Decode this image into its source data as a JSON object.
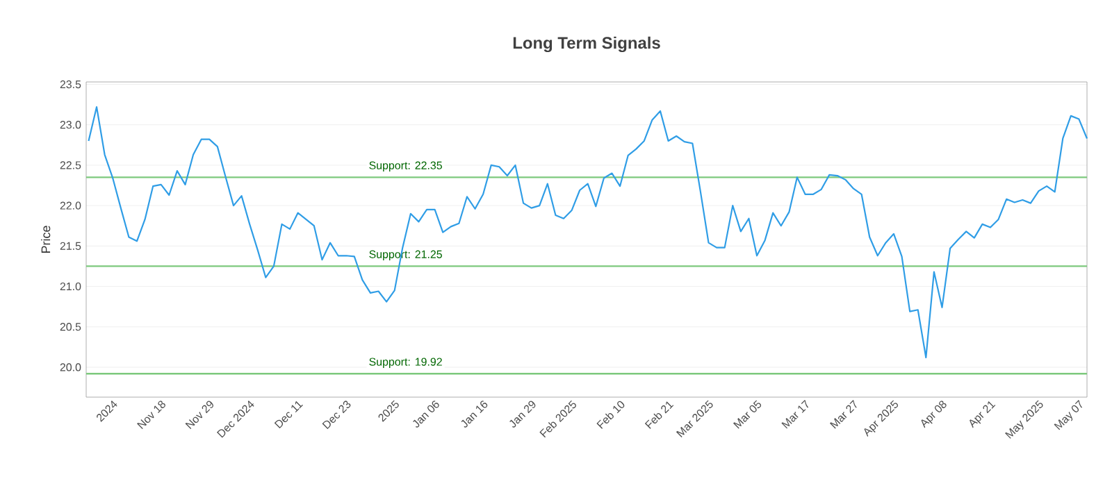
{
  "chart_data": {
    "type": "line",
    "title": "Long Term Signals",
    "ylabel": "Price",
    "categories": [
      null,
      null,
      null,
      "2024",
      null,
      null,
      null,
      null,
      null,
      "Nov 18",
      null,
      null,
      null,
      null,
      null,
      "Nov 29",
      null,
      null,
      null,
      null,
      "Dec 2024",
      null,
      null,
      null,
      null,
      null,
      "Dec 11",
      null,
      null,
      null,
      null,
      null,
      "Dec 23",
      null,
      null,
      null,
      null,
      null,
      "2025",
      null,
      null,
      null,
      null,
      "Jan 06",
      null,
      null,
      null,
      null,
      null,
      "Jan 16",
      null,
      null,
      null,
      null,
      null,
      "Jan 29",
      null,
      null,
      null,
      null,
      "Feb 2025",
      null,
      null,
      null,
      null,
      null,
      "Feb 10",
      null,
      null,
      null,
      null,
      null,
      "Feb 21",
      null,
      null,
      null,
      null,
      "Mar 2025",
      null,
      null,
      null,
      null,
      null,
      "Mar 05",
      null,
      null,
      null,
      null,
      null,
      "Mar 17",
      null,
      null,
      null,
      null,
      null,
      "Mar 27",
      null,
      null,
      null,
      null,
      "Apr 2025",
      null,
      null,
      null,
      null,
      null,
      "Apr 08",
      null,
      null,
      null,
      null,
      null,
      "Apr 21",
      null,
      null,
      null,
      null,
      null,
      "May 2025",
      null,
      null,
      null,
      null,
      "May 07",
      null
    ],
    "series": [
      {
        "color": "#2f9de6",
        "values": [
          22.8,
          23.22,
          22.63,
          22.34,
          21.97,
          21.61,
          21.56,
          21.83,
          22.24,
          22.26,
          22.13,
          22.43,
          22.26,
          22.63,
          22.82,
          22.82,
          22.73,
          22.36,
          22.0,
          22.12,
          21.77,
          21.45,
          21.11,
          21.25,
          21.77,
          21.71,
          21.91,
          21.83,
          21.75,
          21.33,
          21.54,
          21.38,
          21.38,
          21.37,
          21.08,
          20.92,
          20.94,
          20.81,
          20.95,
          21.48,
          21.9,
          21.8,
          21.95,
          21.95,
          21.67,
          21.74,
          21.78,
          22.11,
          21.96,
          22.14,
          22.5,
          22.48,
          22.37,
          22.5,
          22.03,
          21.97,
          22.0,
          22.27,
          21.88,
          21.84,
          21.94,
          22.19,
          22.27,
          21.99,
          22.34,
          22.4,
          22.24,
          22.62,
          22.7,
          22.8,
          23.06,
          23.17,
          22.8,
          22.86,
          22.79,
          22.77,
          22.17,
          21.54,
          21.48,
          21.48,
          22.0,
          21.68,
          21.84,
          21.38,
          21.57,
          21.91,
          21.75,
          21.92,
          22.35,
          22.14,
          22.14,
          22.2,
          22.38,
          22.37,
          22.32,
          22.21,
          22.14,
          21.61,
          21.38,
          21.54,
          21.65,
          21.37,
          20.69,
          20.71,
          20.12,
          21.18,
          20.74,
          21.47,
          21.58,
          21.68,
          21.6,
          21.77,
          21.73,
          21.83,
          22.08,
          22.04,
          22.07,
          22.03,
          22.18,
          22.24,
          22.17,
          22.83,
          23.11,
          23.07,
          22.83
        ]
      }
    ],
    "ylim": [
      19.63,
      23.53
    ],
    "yticks": [
      {
        "value": 20,
        "label": "20.0"
      },
      {
        "value": 20.5,
        "label": "20.5"
      },
      {
        "value": 21,
        "label": "21.0"
      },
      {
        "value": 21.5,
        "label": "21.5"
      },
      {
        "value": 22,
        "label": "22.0"
      },
      {
        "value": 22.5,
        "label": "22.5"
      },
      {
        "value": 23,
        "label": "23.0"
      },
      {
        "value": 23.5,
        "label": "23.5"
      }
    ],
    "grid": "y",
    "marker": "none",
    "line_style": "solid",
    "ref_lines": [
      {
        "axis": "y",
        "value": 22.35,
        "label": "Support: 22.35",
        "color": "#7dc97d"
      },
      {
        "axis": "y",
        "value": 21.25,
        "label": "Support: 21.25",
        "color": "#7dc97d"
      },
      {
        "axis": "y",
        "value": 19.92,
        "label": "Support: 19.92",
        "color": "#7dc97d"
      }
    ]
  }
}
